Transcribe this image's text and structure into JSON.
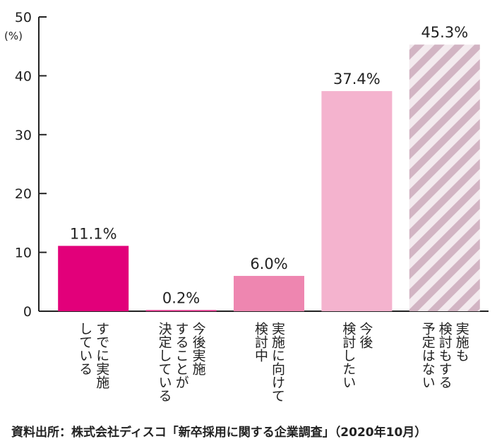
{
  "chart_data": {
    "type": "bar",
    "ylabel": "(%)",
    "ylim": [
      0,
      50
    ],
    "yticks": [
      0,
      10,
      20,
      30,
      40,
      50
    ],
    "grid": false,
    "legend": "none",
    "categories": [
      [
        "すでに実施",
        "している"
      ],
      [
        "今後実施",
        "することが",
        "決定している"
      ],
      [
        "実施に向けて",
        "検討中"
      ],
      [
        "今後",
        "検討したい"
      ],
      [
        "実施も",
        "検討もする",
        "予定はない"
      ]
    ],
    "values": [
      11.1,
      0.2,
      6.0,
      37.4,
      45.3
    ],
    "value_labels": [
      "11.1%",
      "0.2%",
      "6.0%",
      "37.4%",
      "45.3%"
    ],
    "colors": [
      "#e2007a",
      "#e8368f",
      "#ee86b0",
      "#f4b3ce",
      "hatch"
    ],
    "hatch_colors": [
      "#d2b4c3",
      "#f3eaee"
    ]
  },
  "source": "資料出所：株式会社ディスコ「新卒採用に関する企業調査」（2020年10月）"
}
